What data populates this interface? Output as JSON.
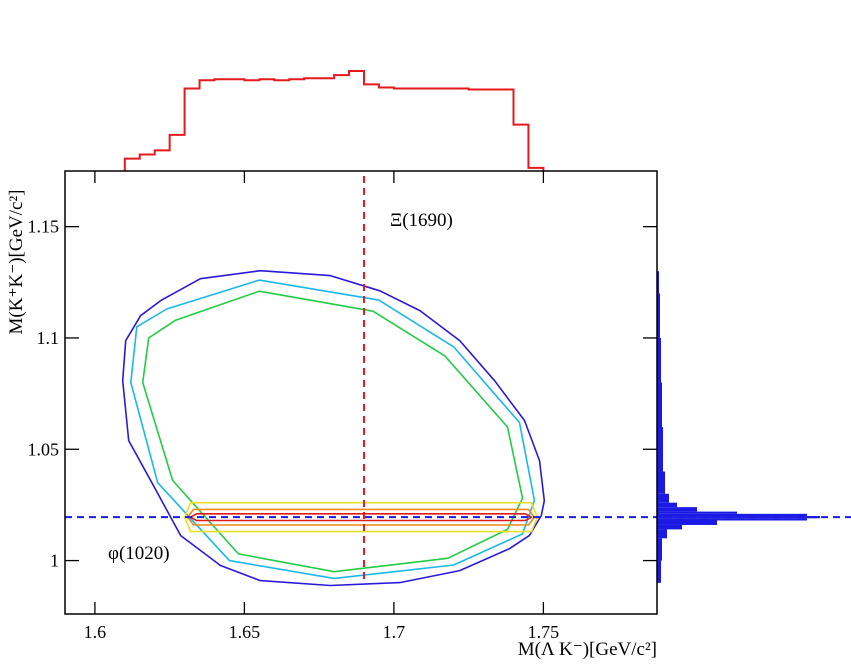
{
  "chart_data": {
    "type": "contour",
    "xlabel": "M(Λ K⁻)[GeV/c²]",
    "ylabel": "M(K⁺K⁻)[GeV/c²]",
    "xlim": [
      1.59,
      1.788
    ],
    "ylim": [
      0.976,
      1.175
    ],
    "xticks": [
      1.6,
      1.65,
      1.7,
      1.75
    ],
    "yticks": [
      1,
      1.05,
      1.1,
      1.15
    ],
    "annotations": [
      "Ξ(1690)",
      "φ(1020)"
    ],
    "reference_lines": [
      {
        "axis": "x",
        "value": 1.69,
        "color": "#e41a1c"
      },
      {
        "axis": "y",
        "value": 1.0195,
        "color": "#1a1ae4"
      }
    ],
    "contours": [
      {
        "color": "#2a1ad8",
        "x": [
          1.622,
          1.6353,
          1.6553,
          1.6787,
          1.6953,
          1.7087,
          1.722,
          1.7337,
          1.7437,
          1.7487,
          1.7503,
          1.7493,
          1.7453,
          1.7387,
          1.722,
          1.702,
          1.6787,
          1.6553,
          1.642,
          1.6287,
          1.6187,
          1.6113,
          1.6093,
          1.6103,
          1.6153
        ],
        "y": [
          1.1168,
          1.1266,
          1.1302,
          1.128,
          1.1212,
          1.1123,
          1.0988,
          1.0808,
          1.0629,
          1.0449,
          1.0269,
          1.0202,
          1.0112,
          1.0054,
          0.9955,
          0.9901,
          0.9888,
          0.991,
          0.9978,
          1.0112,
          1.0359,
          1.0539,
          1.0808,
          1.0988,
          1.11
        ]
      },
      {
        "color": "#1ab8e8",
        "x": [
          1.624,
          1.655,
          1.695,
          1.72,
          1.742,
          1.747,
          1.743,
          1.72,
          1.68,
          1.645,
          1.621,
          1.612,
          1.614
        ],
        "y": [
          1.113,
          1.126,
          1.117,
          1.096,
          1.062,
          1.027,
          1.012,
          0.998,
          0.992,
          1.0,
          1.035,
          1.08,
          1.105
        ]
      },
      {
        "color": "#22cc44",
        "x": [
          1.627,
          1.655,
          1.693,
          1.717,
          1.738,
          1.743,
          1.738,
          1.718,
          1.68,
          1.648,
          1.626,
          1.616,
          1.618
        ],
        "y": [
          1.108,
          1.121,
          1.112,
          1.092,
          1.06,
          1.028,
          1.014,
          1.001,
          0.995,
          1.003,
          1.036,
          1.08,
          1.1
        ]
      },
      {
        "color": "#e8e020",
        "x": [
          1.632,
          1.746,
          1.748,
          1.746,
          1.632,
          1.63
        ],
        "y": [
          1.013,
          1.013,
          1.0195,
          1.026,
          1.026,
          1.0195
        ]
      },
      {
        "color": "#f08a1a",
        "x": [
          1.633,
          1.745,
          1.747,
          1.745,
          1.633,
          1.631
        ],
        "y": [
          1.016,
          1.016,
          1.0195,
          1.023,
          1.023,
          1.0195
        ]
      },
      {
        "color": "#e01a1a",
        "x": [
          1.634,
          1.744,
          1.746,
          1.744,
          1.634,
          1.632
        ],
        "y": [
          1.018,
          1.018,
          1.0195,
          1.021,
          1.021,
          1.0195
        ]
      }
    ],
    "x_projection": {
      "color": "#e41a1c",
      "bins": [
        1.61,
        1.615,
        1.62,
        1.625,
        1.63,
        1.635,
        1.64,
        1.645,
        1.65,
        1.655,
        1.66,
        1.665,
        1.67,
        1.675,
        1.68,
        1.685,
        1.69,
        1.695,
        1.7,
        1.705,
        1.71,
        1.715,
        1.72,
        1.725,
        1.73,
        1.735,
        1.74,
        1.745,
        1.75
      ],
      "counts": [
        12,
        16,
        20,
        35,
        80,
        88,
        89,
        89,
        88,
        89,
        88,
        89,
        90,
        90,
        93,
        97,
        84,
        81,
        80,
        80,
        80,
        80,
        80,
        79,
        79,
        79,
        45,
        3
      ]
    },
    "y_projection": {
      "color": "#1a1ae4",
      "bins": [
        0.99,
        1.0,
        1.01,
        1.014,
        1.016,
        1.018,
        1.019,
        1.02,
        1.021,
        1.022,
        1.024,
        1.026,
        1.03,
        1.04,
        1.06,
        1.08,
        1.1,
        1.12,
        1.13
      ],
      "counts": [
        4,
        5,
        10,
        25,
        60,
        150,
        163,
        150,
        80,
        40,
        20,
        12,
        8,
        6,
        5,
        4,
        3,
        2
      ]
    }
  }
}
